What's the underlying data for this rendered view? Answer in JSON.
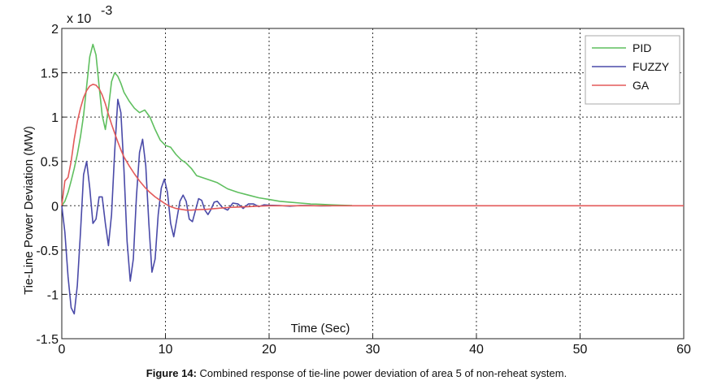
{
  "caption": {
    "label": "Figure 14:",
    "text": " Combined response of tie-line power deviation of area 5 of non-reheat system."
  },
  "chart_data": {
    "type": "line",
    "xlabel": "Time (Sec)",
    "ylabel": "Tie-Line Power Deviation (MW)",
    "y_exponent_label": "x 10",
    "y_exponent_power": "-3",
    "xlim": [
      0,
      60
    ],
    "ylim": [
      -1.5,
      2
    ],
    "x_ticks": [
      "0",
      "10",
      "20",
      "30",
      "40",
      "50",
      "60"
    ],
    "y_ticks": [
      "-1.5",
      "-1",
      "-0.5",
      "0",
      "0.5",
      "1",
      "1.5",
      "2"
    ],
    "grid": true,
    "legend_position": "top-right",
    "series": [
      {
        "name": "PID",
        "color": "#5fbf5f",
        "x": [
          0,
          0.3,
          0.6,
          0.9,
          1.2,
          1.5,
          1.8,
          2.1,
          2.4,
          2.7,
          3.0,
          3.3,
          3.6,
          3.9,
          4.2,
          4.5,
          4.8,
          5.1,
          5.4,
          5.7,
          6.0,
          6.5,
          7.0,
          7.5,
          8.0,
          8.5,
          9.0,
          9.5,
          10.0,
          10.5,
          11.0,
          11.5,
          12.0,
          12.5,
          13.0,
          14.0,
          15.0,
          16.0,
          17.0,
          18.0,
          19.0,
          20.0,
          21.0,
          22.0,
          23.0,
          24.0,
          25.0,
          26.0,
          27.0,
          28.0
        ],
        "y": [
          0,
          0.05,
          0.15,
          0.28,
          0.42,
          0.58,
          0.78,
          1.02,
          1.35,
          1.68,
          1.82,
          1.7,
          1.35,
          1.02,
          0.86,
          1.1,
          1.4,
          1.5,
          1.46,
          1.38,
          1.28,
          1.18,
          1.1,
          1.05,
          1.08,
          1.0,
          0.86,
          0.74,
          0.68,
          0.66,
          0.58,
          0.52,
          0.48,
          0.42,
          0.34,
          0.3,
          0.26,
          0.19,
          0.15,
          0.12,
          0.09,
          0.07,
          0.05,
          0.04,
          0.03,
          0.02,
          0.015,
          0.01,
          0.005,
          0.002
        ]
      },
      {
        "name": "FUZZY",
        "color": "#4a4aa8",
        "x": [
          0,
          0.3,
          0.6,
          0.9,
          1.2,
          1.5,
          1.8,
          2.1,
          2.4,
          2.7,
          3.0,
          3.3,
          3.6,
          3.9,
          4.2,
          4.5,
          4.8,
          5.1,
          5.4,
          5.7,
          6.0,
          6.3,
          6.6,
          6.9,
          7.2,
          7.5,
          7.8,
          8.1,
          8.4,
          8.7,
          9.0,
          9.3,
          9.6,
          9.9,
          10.2,
          10.5,
          10.8,
          11.1,
          11.4,
          11.7,
          12.0,
          12.3,
          12.6,
          12.9,
          13.2,
          13.5,
          13.8,
          14.1,
          14.4,
          14.7,
          15.0,
          15.5,
          16.0,
          16.5,
          17.0,
          17.5,
          18.0,
          18.5,
          19.0,
          19.5,
          20.0,
          21.0,
          22.0,
          23.0,
          24.0,
          25.0,
          26.0
        ],
        "y": [
          0,
          -0.3,
          -0.8,
          -1.15,
          -1.22,
          -0.9,
          -0.3,
          0.35,
          0.5,
          0.2,
          -0.2,
          -0.15,
          0.1,
          0.1,
          -0.2,
          -0.45,
          -0.1,
          0.6,
          1.2,
          1.05,
          0.4,
          -0.4,
          -0.85,
          -0.6,
          0.1,
          0.6,
          0.75,
          0.45,
          -0.2,
          -0.75,
          -0.6,
          -0.1,
          0.2,
          0.3,
          0.15,
          -0.2,
          -0.35,
          -0.15,
          0.05,
          0.12,
          0.05,
          -0.15,
          -0.18,
          -0.05,
          0.08,
          0.06,
          -0.05,
          -0.1,
          -0.04,
          0.04,
          0.05,
          -0.02,
          -0.05,
          0.03,
          0.02,
          -0.03,
          0.02,
          0.02,
          -0.01,
          0.01,
          0.005,
          0.003,
          -0.005,
          0.003,
          0.002,
          -0.002,
          0
        ]
      },
      {
        "name": "GA",
        "color": "#e35a5a",
        "x": [
          0,
          0.3,
          0.6,
          0.9,
          1.2,
          1.5,
          1.8,
          2.1,
          2.4,
          2.7,
          3.0,
          3.3,
          3.6,
          3.9,
          4.2,
          4.5,
          4.8,
          5.1,
          5.4,
          5.7,
          6.0,
          6.5,
          7.0,
          7.5,
          8.0,
          8.5,
          9.0,
          9.5,
          10.0,
          10.5,
          11.0,
          11.5,
          12.0,
          12.5,
          13.0,
          14.0,
          15.0,
          16.0,
          17.0,
          18.0,
          19.0,
          20.0,
          22.0,
          25.0,
          30.0,
          35.0,
          40.0,
          45.0,
          50.0,
          55.0,
          60.0
        ],
        "y": [
          0,
          0.28,
          0.32,
          0.5,
          0.75,
          0.95,
          1.1,
          1.22,
          1.3,
          1.35,
          1.37,
          1.36,
          1.32,
          1.25,
          1.15,
          1.03,
          0.92,
          0.82,
          0.72,
          0.63,
          0.55,
          0.45,
          0.36,
          0.28,
          0.21,
          0.15,
          0.1,
          0.06,
          0.02,
          -0.01,
          -0.03,
          -0.04,
          -0.05,
          -0.05,
          -0.045,
          -0.04,
          -0.03,
          -0.02,
          -0.015,
          -0.01,
          -0.005,
          0,
          0,
          0,
          0,
          0,
          0,
          0,
          0,
          0,
          0
        ]
      }
    ]
  }
}
